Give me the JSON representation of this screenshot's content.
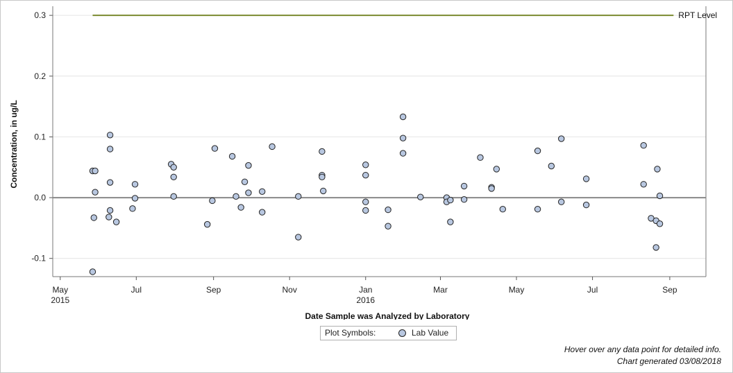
{
  "chart_data": {
    "type": "scatter",
    "xlabel": "Date Sample was Analyzed by Laboratory",
    "ylabel": "Concentration, in ug/L",
    "ylim": [
      -0.13,
      0.315
    ],
    "xlim": [
      "2015-04-25",
      "2016-09-30"
    ],
    "yticks": [
      {
        "value": 0.3,
        "label": "0.3"
      },
      {
        "value": 0.2,
        "label": "0.2"
      },
      {
        "value": 0.1,
        "label": "0.1"
      },
      {
        "value": 0.0,
        "label": "0.0"
      },
      {
        "value": -0.1,
        "label": "-0.1"
      }
    ],
    "xticks": [
      {
        "date": "2015-05-01",
        "label": "May",
        "year": "2015"
      },
      {
        "date": "2015-07-01",
        "label": "Jul",
        "year": ""
      },
      {
        "date": "2015-09-01",
        "label": "Sep",
        "year": ""
      },
      {
        "date": "2015-11-01",
        "label": "Nov",
        "year": ""
      },
      {
        "date": "2016-01-01",
        "label": "Jan",
        "year": "2016"
      },
      {
        "date": "2016-03-01",
        "label": "Mar",
        "year": ""
      },
      {
        "date": "2016-05-01",
        "label": "May",
        "year": ""
      },
      {
        "date": "2016-07-01",
        "label": "Jul",
        "year": ""
      },
      {
        "date": "2016-09-01",
        "label": "Sep",
        "year": ""
      }
    ],
    "reference_line": {
      "name": "RPT Level",
      "value": 0.3,
      "start": "2015-05-27",
      "end": "2016-09-04",
      "color": "#7a8a2e"
    },
    "zero_line": {
      "value": 0.0,
      "color": "#888888"
    },
    "grid": true,
    "series": [
      {
        "name": "Lab Value",
        "color": "#b8c7e0",
        "edge": "#222222",
        "points": [
          {
            "x": "2015-05-27",
            "y": 0.044
          },
          {
            "x": "2015-05-27",
            "y": -0.122
          },
          {
            "x": "2015-05-28",
            "y": -0.033
          },
          {
            "x": "2015-05-29",
            "y": 0.044
          },
          {
            "x": "2015-05-29",
            "y": 0.009
          },
          {
            "x": "2015-06-09",
            "y": -0.032
          },
          {
            "x": "2015-06-10",
            "y": -0.021
          },
          {
            "x": "2015-06-10",
            "y": 0.025
          },
          {
            "x": "2015-06-10",
            "y": 0.08
          },
          {
            "x": "2015-06-10",
            "y": 0.103
          },
          {
            "x": "2015-06-15",
            "y": -0.04
          },
          {
            "x": "2015-06-28",
            "y": -0.018
          },
          {
            "x": "2015-06-30",
            "y": 0.022
          },
          {
            "x": "2015-06-30",
            "y": -0.001
          },
          {
            "x": "2015-07-29",
            "y": 0.055
          },
          {
            "x": "2015-07-31",
            "y": 0.05
          },
          {
            "x": "2015-07-31",
            "y": 0.034
          },
          {
            "x": "2015-07-31",
            "y": 0.002
          },
          {
            "x": "2015-08-27",
            "y": -0.044
          },
          {
            "x": "2015-08-31",
            "y": -0.005
          },
          {
            "x": "2015-09-02",
            "y": 0.081
          },
          {
            "x": "2015-09-16",
            "y": 0.068
          },
          {
            "x": "2015-09-19",
            "y": 0.002
          },
          {
            "x": "2015-09-23",
            "y": -0.016
          },
          {
            "x": "2015-09-26",
            "y": 0.026
          },
          {
            "x": "2015-09-29",
            "y": 0.053
          },
          {
            "x": "2015-09-29",
            "y": 0.008
          },
          {
            "x": "2015-10-10",
            "y": 0.01
          },
          {
            "x": "2015-10-10",
            "y": -0.024
          },
          {
            "x": "2015-10-18",
            "y": 0.084
          },
          {
            "x": "2015-11-08",
            "y": 0.002
          },
          {
            "x": "2015-11-08",
            "y": -0.065
          },
          {
            "x": "2015-11-27",
            "y": 0.076
          },
          {
            "x": "2015-11-27",
            "y": 0.037
          },
          {
            "x": "2015-11-27",
            "y": 0.034
          },
          {
            "x": "2015-11-28",
            "y": 0.011
          },
          {
            "x": "2016-01-01",
            "y": 0.054
          },
          {
            "x": "2016-01-01",
            "y": 0.037
          },
          {
            "x": "2016-01-01",
            "y": -0.007
          },
          {
            "x": "2016-01-01",
            "y": -0.021
          },
          {
            "x": "2016-01-19",
            "y": -0.02
          },
          {
            "x": "2016-01-19",
            "y": -0.047
          },
          {
            "x": "2016-01-31",
            "y": 0.133
          },
          {
            "x": "2016-01-31",
            "y": 0.098
          },
          {
            "x": "2016-01-31",
            "y": 0.073
          },
          {
            "x": "2016-02-14",
            "y": 0.001
          },
          {
            "x": "2016-03-06",
            "y": 0.0
          },
          {
            "x": "2016-03-06",
            "y": -0.007
          },
          {
            "x": "2016-03-09",
            "y": -0.004
          },
          {
            "x": "2016-03-09",
            "y": -0.04
          },
          {
            "x": "2016-03-20",
            "y": 0.019
          },
          {
            "x": "2016-03-20",
            "y": -0.003
          },
          {
            "x": "2016-04-02",
            "y": 0.066
          },
          {
            "x": "2016-04-11",
            "y": 0.017
          },
          {
            "x": "2016-04-11",
            "y": 0.015
          },
          {
            "x": "2016-04-15",
            "y": 0.047
          },
          {
            "x": "2016-04-20",
            "y": -0.019
          },
          {
            "x": "2016-05-18",
            "y": 0.077
          },
          {
            "x": "2016-05-18",
            "y": -0.019
          },
          {
            "x": "2016-05-29",
            "y": 0.052
          },
          {
            "x": "2016-06-06",
            "y": 0.097
          },
          {
            "x": "2016-06-06",
            "y": -0.007
          },
          {
            "x": "2016-06-26",
            "y": 0.031
          },
          {
            "x": "2016-06-26",
            "y": -0.012
          },
          {
            "x": "2016-08-11",
            "y": 0.086
          },
          {
            "x": "2016-08-11",
            "y": 0.022
          },
          {
            "x": "2016-08-17",
            "y": -0.034
          },
          {
            "x": "2016-08-21",
            "y": -0.038
          },
          {
            "x": "2016-08-21",
            "y": -0.082
          },
          {
            "x": "2016-08-22",
            "y": 0.047
          },
          {
            "x": "2016-08-24",
            "y": 0.003
          },
          {
            "x": "2016-08-24",
            "y": -0.043
          }
        ]
      }
    ]
  },
  "legend": {
    "label": "Plot Symbols:",
    "item": "Lab Value"
  },
  "footer": {
    "hover_note": "Hover over any data point for detailed info.",
    "generated": "Chart generated 03/08/2018"
  }
}
